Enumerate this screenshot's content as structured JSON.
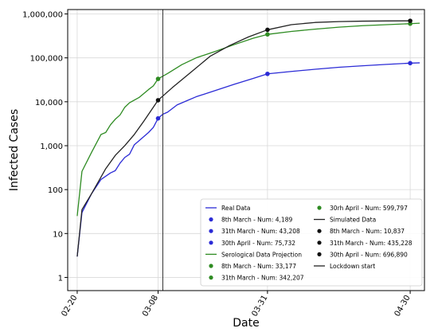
{
  "chart_data": {
    "type": "line",
    "x_dates": [
      "2020-02-20",
      "2020-03-08",
      "2020-03-31",
      "2020-04-30"
    ],
    "xlabel": "Date",
    "ylabel": "Infected Cases",
    "yscale": "log",
    "ylim": [
      1,
      1000000
    ],
    "x_ticks": [
      "02-20",
      "03-08",
      "03-31",
      "04-30"
    ],
    "y_ticks": [
      "1",
      "10",
      "100",
      "1,000",
      "10,000",
      "100,000",
      "1,000,000"
    ],
    "grid": true,
    "legend_position": "bottom-right",
    "vertical_line": {
      "date": "2020-03-09",
      "label": "Lockdown start"
    },
    "series": [
      {
        "name": "Real Data",
        "color": "#2b2bd6",
        "points": [
          [
            "2020-02-20",
            3
          ],
          [
            "2020-02-21",
            30
          ],
          [
            "2020-02-23",
            80
          ],
          [
            "2020-02-25",
            170
          ],
          [
            "2020-02-27",
            240
          ],
          [
            "2020-02-28",
            270
          ],
          [
            "2020-02-29",
            400
          ],
          [
            "2020-03-01",
            540
          ],
          [
            "2020-03-02",
            640
          ],
          [
            "2020-03-03",
            1050
          ],
          [
            "2020-03-04",
            1300
          ],
          [
            "2020-03-06",
            2000
          ],
          [
            "2020-03-07",
            2600
          ],
          [
            "2020-03-08",
            4189
          ],
          [
            "2020-03-09",
            5200
          ],
          [
            "2020-03-10",
            5800
          ],
          [
            "2020-03-12",
            8500
          ],
          [
            "2020-03-14",
            10500
          ],
          [
            "2020-03-16",
            13000
          ],
          [
            "2020-03-20",
            18000
          ],
          [
            "2020-03-24",
            25000
          ],
          [
            "2020-03-28",
            34000
          ],
          [
            "2020-03-31",
            43208
          ],
          [
            "2020-04-05",
            49000
          ],
          [
            "2020-04-10",
            55000
          ],
          [
            "2020-04-15",
            61000
          ],
          [
            "2020-04-20",
            66000
          ],
          [
            "2020-04-25",
            71000
          ],
          [
            "2020-04-30",
            75732
          ],
          [
            "2020-05-02",
            77000
          ]
        ]
      },
      {
        "name": "Serological Data Projection",
        "color": "#2e8b22",
        "points": [
          [
            "2020-02-20",
            25
          ],
          [
            "2020-02-21",
            260
          ],
          [
            "2020-02-23",
            700
          ],
          [
            "2020-02-25",
            1800
          ],
          [
            "2020-02-26",
            2000
          ],
          [
            "2020-02-27",
            3000
          ],
          [
            "2020-02-28",
            4000
          ],
          [
            "2020-02-29",
            5000
          ],
          [
            "2020-03-01",
            7500
          ],
          [
            "2020-03-02",
            9500
          ],
          [
            "2020-03-04",
            12500
          ],
          [
            "2020-03-06",
            19000
          ],
          [
            "2020-03-07",
            23000
          ],
          [
            "2020-03-08",
            33177
          ],
          [
            "2020-03-10",
            44000
          ],
          [
            "2020-03-13",
            70000
          ],
          [
            "2020-03-16",
            100000
          ],
          [
            "2020-03-20",
            140000
          ],
          [
            "2020-03-24",
            200000
          ],
          [
            "2020-03-28",
            280000
          ],
          [
            "2020-03-31",
            342207
          ],
          [
            "2020-04-05",
            400000
          ],
          [
            "2020-04-10",
            450000
          ],
          [
            "2020-04-15",
            500000
          ],
          [
            "2020-04-20",
            540000
          ],
          [
            "2020-04-25",
            570000
          ],
          [
            "2020-04-30",
            599797
          ],
          [
            "2020-05-02",
            615000
          ]
        ]
      },
      {
        "name": "Simulated Data",
        "color": "#222222",
        "points": [
          [
            "2020-02-20",
            3
          ],
          [
            "2020-02-21",
            35
          ],
          [
            "2020-02-23",
            80
          ],
          [
            "2020-02-26",
            300
          ],
          [
            "2020-02-28",
            600
          ],
          [
            "2020-03-01",
            1000
          ],
          [
            "2020-03-03",
            1800
          ],
          [
            "2020-03-05",
            3600
          ],
          [
            "2020-03-08",
            10837
          ],
          [
            "2020-03-11",
            21000
          ],
          [
            "2020-03-15",
            48000
          ],
          [
            "2020-03-19",
            110000
          ],
          [
            "2020-03-23",
            190000
          ],
          [
            "2020-03-27",
            300000
          ],
          [
            "2020-03-31",
            435228
          ],
          [
            "2020-04-05",
            570000
          ],
          [
            "2020-04-10",
            640000
          ],
          [
            "2020-04-15",
            670000
          ],
          [
            "2020-04-20",
            685000
          ],
          [
            "2020-04-25",
            692000
          ],
          [
            "2020-04-30",
            696890
          ]
        ]
      }
    ],
    "markers": [
      {
        "label": "8th March - Num: 4,189",
        "date": "2020-03-08",
        "value": 4189,
        "color": "#2b2bd6"
      },
      {
        "label": "31th March - Num: 43,208",
        "date": "2020-03-31",
        "value": 43208,
        "color": "#2b2bd6"
      },
      {
        "label": "30th April - Num: 75,732",
        "date": "2020-04-30",
        "value": 75732,
        "color": "#2b2bd6"
      },
      {
        "label": "8th March - Num: 33,177",
        "date": "2020-03-08",
        "value": 33177,
        "color": "#2e8b22"
      },
      {
        "label": "31th March - Num: 342,207",
        "date": "2020-03-31",
        "value": 342207,
        "color": "#2e8b22"
      },
      {
        "label": "30rh April - Num: 599,797",
        "date": "2020-04-30",
        "value": 599797,
        "color": "#2e8b22"
      },
      {
        "label": "8th March - Num: 10,837",
        "date": "2020-03-08",
        "value": 10837,
        "color": "#111111"
      },
      {
        "label": "31th March - Num: 435,228",
        "date": "2020-03-31",
        "value": 435228,
        "color": "#111111"
      },
      {
        "label": "30th April - Num: 696,890",
        "date": "2020-04-30",
        "value": 696890,
        "color": "#111111"
      }
    ],
    "legend": {
      "col1": [
        {
          "kind": "line",
          "color": "#2b2bd6",
          "label": "Real Data"
        },
        {
          "kind": "dot",
          "color": "#2b2bd6",
          "label": "8th March   - Num: 4,189"
        },
        {
          "kind": "dot",
          "color": "#2b2bd6",
          "label": "31th March - Num: 43,208"
        },
        {
          "kind": "dot",
          "color": "#2b2bd6",
          "label": "30th April   - Num: 75,732"
        },
        {
          "kind": "line",
          "color": "#2e8b22",
          "label": "Serological Data Projection"
        },
        {
          "kind": "dot",
          "color": "#2e8b22",
          "label": "8th March   - Num: 33,177"
        },
        {
          "kind": "dot",
          "color": "#2e8b22",
          "label": "31th March - Num: 342,207"
        }
      ],
      "col2": [
        {
          "kind": "dot",
          "color": "#2e8b22",
          "label": "30rh April   - Num: 599,797"
        },
        {
          "kind": "line",
          "color": "#222222",
          "label": "Simulated Data"
        },
        {
          "kind": "dot",
          "color": "#111111",
          "label": "8th March   - Num: 10,837"
        },
        {
          "kind": "dot",
          "color": "#111111",
          "label": "31th March - Num: 435,228"
        },
        {
          "kind": "dot",
          "color": "#111111",
          "label": "30th April   - Num: 696,890"
        },
        {
          "kind": "line",
          "color": "#222222",
          "label": "Lockdown start"
        }
      ]
    }
  }
}
